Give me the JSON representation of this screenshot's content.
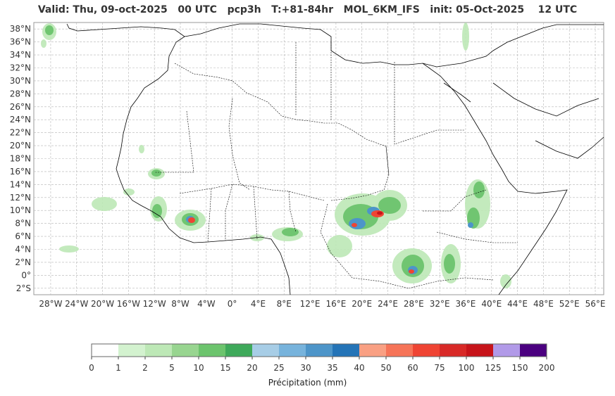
{
  "title": {
    "valid": "Valid: Thu, 09-oct-2025   00 UTC",
    "field": "pcp3h",
    "step": "T:+81-84hr",
    "model": "MOL_6KM_IFS",
    "init": "init: 05-Oct-2025    12 UTC"
  },
  "map": {
    "region": "North Africa",
    "lon_range": [
      -30,
      57
    ],
    "lat_range": [
      -3,
      39
    ],
    "lon_ticks": [
      "28°W",
      "24°W",
      "20°W",
      "16°W",
      "12°W",
      "8°W",
      "4°W",
      "0°",
      "4°E",
      "8°E",
      "12°E",
      "16°E",
      "20°E",
      "24°E",
      "28°E",
      "32°E",
      "36°E",
      "40°E",
      "44°E",
      "48°E",
      "52°E",
      "56°E"
    ],
    "lat_ticks": [
      "38°N",
      "36°N",
      "34°N",
      "32°N",
      "30°N",
      "28°N",
      "26°N",
      "24°N",
      "22°N",
      "20°N",
      "18°N",
      "16°N",
      "14°N",
      "12°N",
      "10°N",
      "8°N",
      "6°N",
      "4°N",
      "2°N",
      "0°",
      "2°S"
    ],
    "grid": true
  },
  "colorbar": {
    "label": "Précipitation (mm)",
    "ticks": [
      "0",
      "1",
      "2",
      "5",
      "10",
      "15",
      "20",
      "25",
      "30",
      "35",
      "40",
      "50",
      "60",
      "75",
      "100",
      "125",
      "150",
      "200"
    ],
    "colors": [
      "#ffffff",
      "#d3f2cf",
      "#bde8b6",
      "#98d590",
      "#6cc46d",
      "#3ea95a",
      "#a7cde6",
      "#77b3dc",
      "#4d95c9",
      "#2474b7",
      "#f9a083",
      "#f67458",
      "#ef4433",
      "#d82927",
      "#c7141a",
      "#b19ae8",
      "#4b0080"
    ]
  }
}
